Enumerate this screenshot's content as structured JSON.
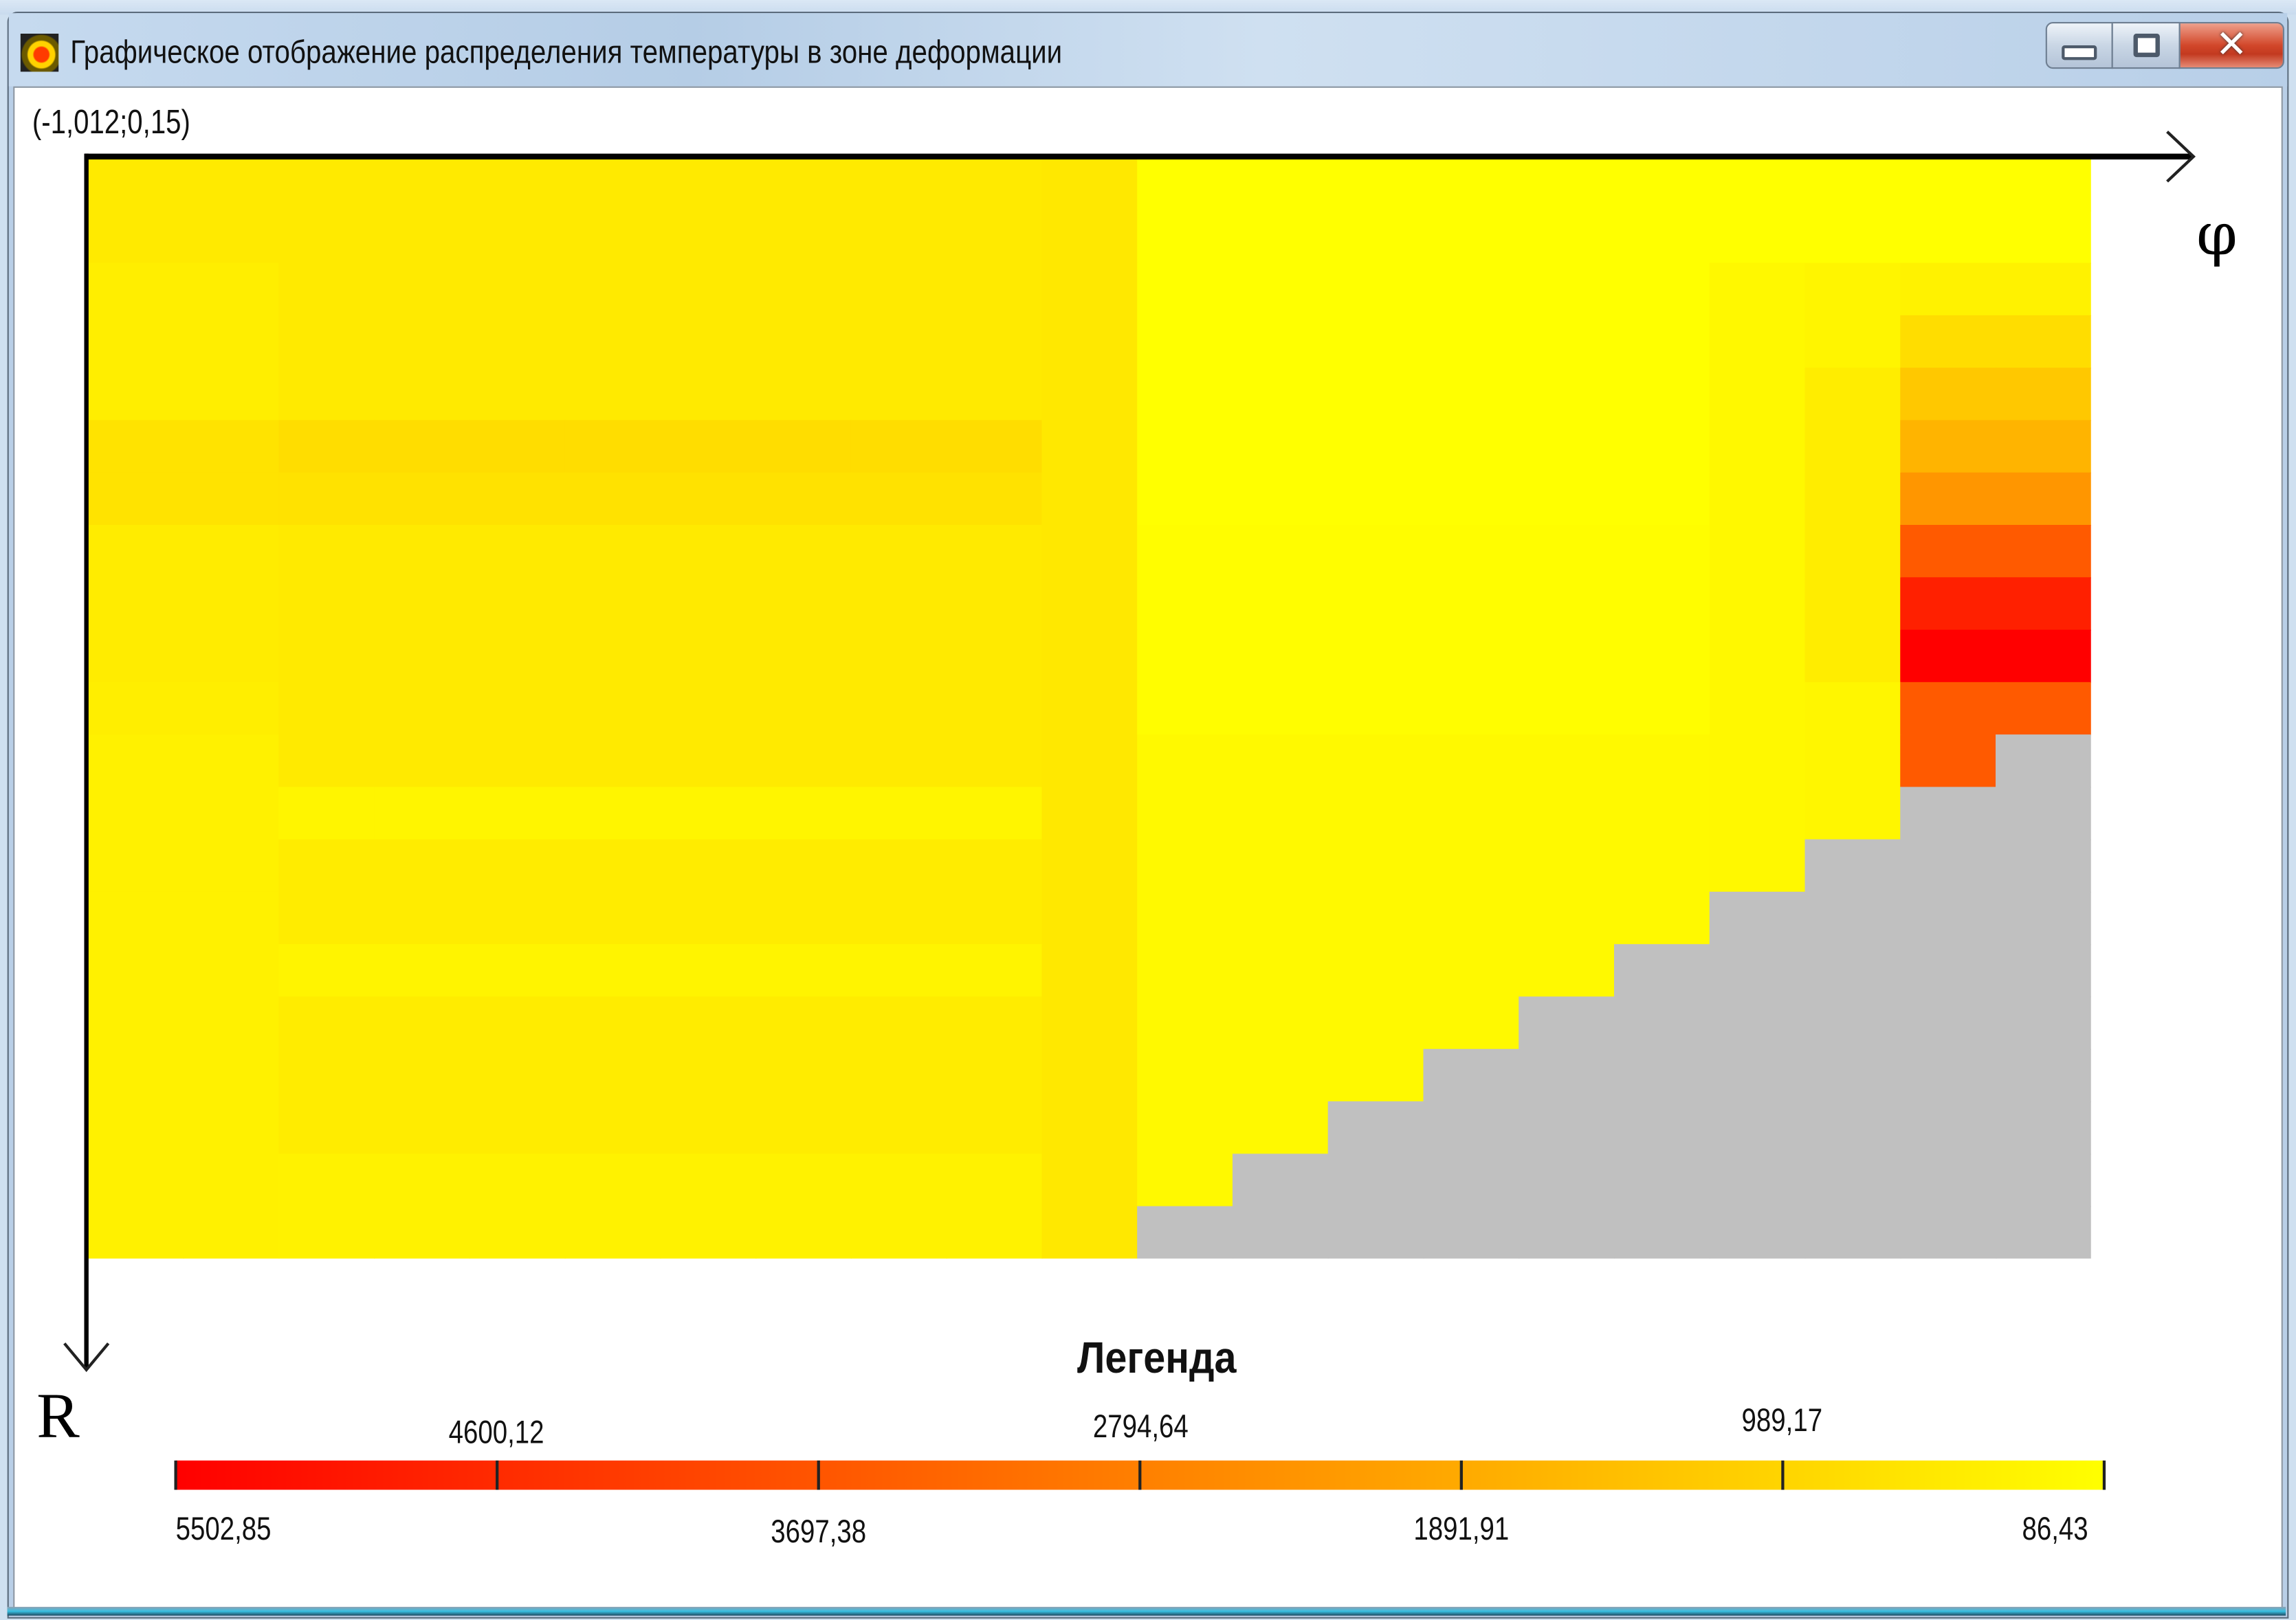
{
  "window": {
    "title": "Графическое отображение распределения температуры в зоне деформации",
    "icon": "sun-app-icon",
    "buttons": [
      "minimize-icon",
      "maximize-icon",
      "close-icon"
    ]
  },
  "chart_data": {
    "type": "heatmap",
    "origin_label": "(-1,012;0,15)",
    "x_axis_label": "φ",
    "y_axis_label": "R",
    "legend_title": "Легенда",
    "grid": false,
    "colormap": {
      "min_color": "#FFFF00",
      "max_color": "#FF0000",
      "missing_color": "#C0C0C0"
    },
    "colorbar": {
      "ticks": [
        "5502,85",
        "4600,12",
        "3697,38",
        "2794,64",
        "1891,91",
        "989,17",
        "86,43"
      ],
      "tick_values": [
        5502.85,
        4600.12,
        3697.38,
        2794.64,
        1891.91,
        989.17,
        86.43
      ],
      "min": 86.43,
      "max": 5502.85
    },
    "rows": 21,
    "cols": 21,
    "values": [
      [
        533,
        533,
        533,
        533,
        533,
        533,
        533,
        533,
        533,
        533,
        575,
        86,
        86,
        86,
        86,
        86,
        86,
        86,
        86,
        86,
        86
      ],
      [
        533,
        533,
        533,
        533,
        533,
        533,
        533,
        533,
        533,
        533,
        575,
        86,
        86,
        86,
        86,
        86,
        86,
        86,
        86,
        86,
        86
      ],
      [
        448,
        448,
        533,
        533,
        533,
        533,
        533,
        533,
        533,
        533,
        575,
        86,
        86,
        86,
        86,
        86,
        86,
        235,
        299,
        363,
        363
      ],
      [
        448,
        448,
        533,
        533,
        533,
        533,
        533,
        533,
        533,
        533,
        575,
        86,
        86,
        86,
        86,
        86,
        86,
        235,
        299,
        809,
        809
      ],
      [
        448,
        448,
        533,
        533,
        533,
        533,
        533,
        533,
        533,
        533,
        575,
        86,
        86,
        86,
        86,
        86,
        86,
        235,
        469,
        1255,
        1255
      ],
      [
        681,
        681,
        809,
        809,
        809,
        809,
        809,
        809,
        809,
        809,
        575,
        86,
        86,
        86,
        86,
        86,
        86,
        235,
        469,
        1679,
        1679
      ],
      [
        681,
        681,
        702,
        702,
        702,
        702,
        702,
        702,
        702,
        702,
        575,
        86,
        86,
        86,
        86,
        86,
        86,
        235,
        469,
        2317,
        2317
      ],
      [
        490,
        490,
        533,
        533,
        533,
        533,
        533,
        533,
        533,
        533,
        575,
        129,
        129,
        129,
        129,
        129,
        129,
        235,
        469,
        3591,
        3591
      ],
      [
        490,
        490,
        533,
        533,
        533,
        533,
        533,
        533,
        533,
        533,
        575,
        129,
        129,
        129,
        129,
        129,
        129,
        235,
        469,
        4823,
        4823
      ],
      [
        490,
        490,
        533,
        533,
        533,
        533,
        533,
        533,
        533,
        533,
        575,
        129,
        129,
        129,
        129,
        129,
        129,
        235,
        469,
        5503,
        5503
      ],
      [
        448,
        448,
        533,
        533,
        533,
        533,
        533,
        533,
        533,
        533,
        575,
        129,
        129,
        129,
        129,
        129,
        129,
        235,
        278,
        3591,
        3591
      ],
      [
        384,
        384,
        533,
        533,
        533,
        533,
        533,
        533,
        533,
        533,
        575,
        214,
        214,
        214,
        214,
        214,
        214,
        235,
        278,
        3591,
        null
      ],
      [
        384,
        384,
        299,
        299,
        299,
        299,
        299,
        299,
        299,
        299,
        575,
        214,
        214,
        214,
        214,
        214,
        214,
        235,
        278,
        null,
        null
      ],
      [
        384,
        384,
        490,
        490,
        490,
        490,
        490,
        490,
        490,
        490,
        575,
        214,
        214,
        214,
        214,
        214,
        214,
        235,
        null,
        null,
        null
      ],
      [
        384,
        384,
        490,
        490,
        490,
        490,
        490,
        490,
        490,
        490,
        575,
        214,
        214,
        214,
        214,
        214,
        214,
        null,
        null,
        null,
        null
      ],
      [
        384,
        384,
        320,
        320,
        320,
        320,
        320,
        320,
        320,
        320,
        575,
        214,
        214,
        214,
        214,
        214,
        null,
        null,
        null,
        null,
        null
      ],
      [
        384,
        384,
        490,
        490,
        490,
        490,
        490,
        490,
        490,
        490,
        575,
        214,
        214,
        214,
        214,
        null,
        null,
        null,
        null,
        null,
        null
      ],
      [
        384,
        384,
        490,
        490,
        490,
        490,
        490,
        490,
        490,
        490,
        575,
        214,
        214,
        214,
        null,
        null,
        null,
        null,
        null,
        null,
        null
      ],
      [
        384,
        384,
        490,
        490,
        490,
        490,
        490,
        490,
        490,
        490,
        575,
        214,
        214,
        null,
        null,
        null,
        null,
        null,
        null,
        null,
        null
      ],
      [
        384,
        384,
        363,
        363,
        363,
        363,
        363,
        363,
        363,
        363,
        575,
        214,
        null,
        null,
        null,
        null,
        null,
        null,
        null,
        null,
        null
      ],
      [
        384,
        384,
        363,
        363,
        363,
        363,
        363,
        363,
        363,
        363,
        575,
        null,
        null,
        null,
        null,
        null,
        null,
        null,
        null,
        null,
        null
      ]
    ]
  }
}
